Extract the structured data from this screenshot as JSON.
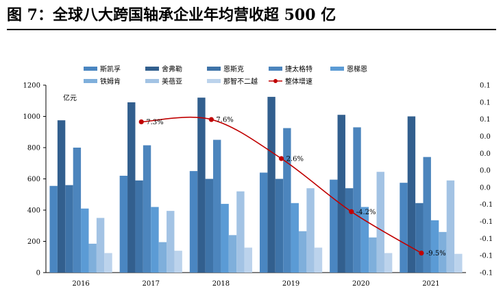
{
  "figure": {
    "title": "图 7：全球八大跨国轴承企业年均营收超 500 亿"
  },
  "chart_data": {
    "type": "bar",
    "title": "",
    "xlabel": "",
    "ylabel": "亿元",
    "categories": [
      "2016",
      "2017",
      "2018",
      "2019",
      "2020",
      "2021"
    ],
    "ylim": [
      0,
      1200
    ],
    "yticks": [
      0,
      200,
      400,
      600,
      800,
      1000,
      1200
    ],
    "y2ticks": [
      "-0.1",
      "-0.1",
      "-0.1",
      "-0.1",
      "-0.1",
      "0.0",
      "0.0",
      "0.0",
      "0.0",
      "0.1",
      "0.1",
      "0.1"
    ],
    "y2lim": [
      -0.12,
      0.12
    ],
    "grid": false,
    "legend_position": "top",
    "series": [
      {
        "name": "斯凯孚",
        "color": "#4a86c1",
        "values": [
          555,
          620,
          650,
          640,
          595,
          575
        ]
      },
      {
        "name": "舍弗勒",
        "color": "#325f8e",
        "values": [
          975,
          1090,
          1120,
          1125,
          1010,
          1000
        ]
      },
      {
        "name": "恩斯克",
        "color": "#3e73a8",
        "values": [
          560,
          590,
          600,
          600,
          540,
          445
        ]
      },
      {
        "name": "捷太格特",
        "color": "#4c85bd",
        "values": [
          800,
          815,
          850,
          925,
          930,
          740
        ]
      },
      {
        "name": "恩梯恩",
        "color": "#5b9bd5",
        "values": [
          410,
          420,
          440,
          445,
          420,
          335
        ]
      },
      {
        "name": "铁姆肯",
        "color": "#7fafdb",
        "values": [
          185,
          195,
          240,
          265,
          225,
          260
        ]
      },
      {
        "name": "美蓓亚",
        "color": "#a3c3e4",
        "values": [
          350,
          395,
          520,
          540,
          645,
          590
        ]
      },
      {
        "name": "那智不二越",
        "color": "#bcd3ec",
        "values": [
          125,
          140,
          160,
          160,
          125,
          120
        ]
      }
    ],
    "line_series": {
      "name": "整体增速",
      "axis": "right",
      "color": "#c00000",
      "values": [
        0.073,
        0.076,
        0.026,
        -0.042,
        -0.095
      ],
      "x_categories": [
        "2017",
        "2018",
        "2019",
        "2020",
        "2021"
      ],
      "labels": [
        "7.3%",
        "7.6%",
        "2.6%",
        "-4.2%",
        "-9.5%"
      ]
    }
  }
}
